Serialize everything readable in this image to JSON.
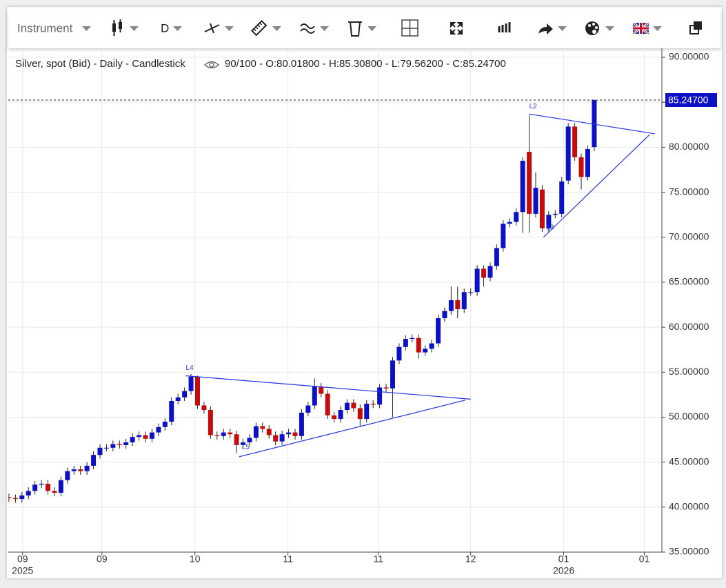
{
  "toolbar": {
    "instrument": "Instrument",
    "interval": "D"
  },
  "chart_data": {
    "type": "candlestick",
    "title": "Silver, spot (Bid) - Daily - Candlestick",
    "info": "90/100 - O:80.01800 - H:85.30800 - L:79.56200 - C:85.24700",
    "up_color": "#0c12c4",
    "down_color": "#c40c0c",
    "grid": true,
    "open": [
      41.1,
      41.0,
      40.9,
      41.3,
      41.8,
      42.5,
      42.6,
      41.8,
      41.6,
      43.0,
      44.0,
      44.2,
      44.0,
      44.6,
      45.8,
      46.6,
      46.6,
      47.0,
      46.9,
      47.2,
      47.8,
      48.0,
      47.6,
      48.3,
      48.9,
      49.5,
      51.8,
      52.2,
      52.9,
      54.5,
      51.3,
      50.8,
      48.0,
      47.9,
      48.3,
      48.1,
      46.9,
      47.2,
      47.7,
      49.0,
      48.7,
      48.0,
      47.3,
      48.1,
      48.3,
      47.9,
      50.5,
      51.3,
      53.4,
      52.6,
      50.2,
      49.8,
      50.8,
      51.6,
      51.0,
      49.8,
      51.5,
      51.4,
      53.3,
      53.2,
      56.3,
      57.8,
      58.7,
      58.8,
      57.2,
      57.6,
      58.2,
      61.0,
      61.8,
      63.0,
      62.0,
      63.9,
      63.9,
      66.5,
      65.5,
      66.8,
      68.8,
      71.5,
      71.7,
      72.8,
      79.5,
      72.6,
      75.3,
      71.0,
      72.5,
      72.6,
      76.3,
      82.3,
      78.9,
      76.7,
      80.018
    ],
    "high": [
      41.5,
      41.4,
      41.7,
      42.2,
      42.9,
      43.0,
      43.0,
      42.2,
      43.4,
      44.4,
      44.6,
      44.6,
      45.0,
      46.2,
      47.0,
      47.0,
      47.4,
      47.4,
      47.6,
      48.2,
      48.4,
      48.4,
      48.7,
      49.3,
      49.9,
      52.2,
      52.6,
      53.3,
      54.8,
      54.6,
      51.7,
      51.2,
      48.4,
      48.7,
      48.7,
      48.5,
      47.6,
      48.1,
      49.4,
      49.4,
      49.1,
      48.4,
      48.5,
      48.7,
      48.7,
      50.9,
      51.7,
      54.3,
      53.8,
      53.0,
      50.6,
      51.2,
      52.0,
      52.0,
      51.4,
      51.9,
      51.9,
      53.7,
      53.7,
      56.7,
      58.2,
      59.1,
      59.2,
      59.2,
      58.0,
      58.6,
      61.4,
      62.2,
      64.5,
      64.5,
      64.3,
      64.3,
      66.9,
      66.9,
      67.2,
      69.2,
      71.9,
      72.1,
      73.2,
      78.9,
      83.6,
      77.2,
      75.8,
      72.9,
      73.0,
      76.7,
      82.7,
      82.7,
      79.3,
      80.2,
      85.308
    ],
    "low": [
      40.6,
      40.5,
      40.5,
      40.9,
      41.4,
      42.1,
      41.4,
      41.2,
      41.2,
      42.6,
      43.6,
      43.6,
      43.6,
      44.2,
      45.4,
      46.2,
      46.2,
      46.5,
      46.5,
      46.8,
      47.4,
      47.2,
      47.2,
      47.9,
      48.5,
      49.1,
      51.4,
      51.8,
      52.5,
      50.9,
      50.4,
      47.6,
      47.5,
      47.5,
      47.7,
      46.0,
      46.5,
      46.8,
      47.3,
      48.3,
      47.6,
      46.9,
      46.9,
      47.7,
      47.5,
      47.5,
      50.1,
      50.9,
      52.2,
      49.8,
      49.4,
      49.4,
      50.4,
      50.6,
      48.9,
      49.4,
      51.0,
      51.0,
      52.8,
      50.0,
      55.9,
      57.4,
      58.3,
      56.5,
      56.8,
      57.2,
      57.8,
      60.6,
      61.4,
      61.0,
      61.6,
      63.5,
      63.5,
      64.5,
      65.1,
      66.4,
      68.4,
      71.1,
      71.3,
      70.5,
      70.5,
      72.2,
      70.6,
      70.6,
      72.1,
      72.2,
      75.9,
      78.5,
      75.3,
      76.3,
      79.562
    ],
    "close": [
      41.0,
      40.9,
      41.3,
      41.8,
      42.5,
      42.6,
      41.8,
      41.6,
      43.0,
      44.0,
      44.2,
      44.0,
      44.6,
      45.8,
      46.6,
      46.6,
      47.0,
      46.9,
      47.2,
      47.8,
      48.0,
      47.6,
      48.3,
      48.9,
      49.5,
      51.8,
      52.2,
      52.9,
      54.5,
      51.3,
      50.8,
      48.0,
      47.9,
      48.3,
      48.1,
      46.9,
      47.2,
      47.7,
      49.0,
      48.7,
      48.0,
      47.3,
      48.1,
      48.3,
      47.9,
      50.5,
      51.3,
      53.4,
      52.6,
      50.2,
      49.8,
      50.8,
      51.6,
      51.0,
      49.8,
      51.5,
      51.4,
      53.3,
      53.2,
      56.3,
      57.8,
      58.7,
      58.8,
      57.2,
      57.6,
      58.2,
      61.0,
      61.8,
      63.0,
      62.0,
      63.9,
      63.9,
      66.5,
      65.5,
      66.8,
      68.8,
      71.5,
      71.7,
      72.8,
      78.5,
      72.6,
      75.5,
      71.0,
      72.5,
      72.6,
      76.2,
      82.3,
      78.9,
      76.7,
      79.8,
      85.247
    ],
    "xlim": [
      -0.1,
      100.4
    ],
    "ylim": [
      35,
      91
    ],
    "xticks": [
      {
        "value": 2.1,
        "label": "09",
        "year": "2025"
      },
      {
        "value": 14.3,
        "label": "09"
      },
      {
        "value": 28.6,
        "label": "10"
      },
      {
        "value": 42.9,
        "label": "11"
      },
      {
        "value": 56.8,
        "label": "11"
      },
      {
        "value": 71.0,
        "label": "12"
      },
      {
        "value": 85.3,
        "label": "01",
        "year": "2026"
      },
      {
        "value": 97.7,
        "label": "01"
      }
    ],
    "yticks": [
      {
        "value": 35,
        "label": "35.00000"
      },
      {
        "value": 40,
        "label": "40.00000"
      },
      {
        "value": 45,
        "label": "45.00000"
      },
      {
        "value": 50,
        "label": "50.00000"
      },
      {
        "value": 55,
        "label": "55.00000"
      },
      {
        "value": 60,
        "label": "60.00000"
      },
      {
        "value": 65,
        "label": "65.00000"
      },
      {
        "value": 70,
        "label": "70.00000"
      },
      {
        "value": 75,
        "label": "75.00000"
      },
      {
        "value": 80,
        "label": "80.00000"
      },
      {
        "value": 85,
        "label": "85.00000"
      },
      {
        "value": 90,
        "label": "90.00000"
      }
    ],
    "last_price": {
      "value": 85.247,
      "label": "85.24700"
    },
    "drawings": [
      {
        "label": "L4",
        "start": [
          27.2,
          54.6
        ],
        "end": [
          71.0,
          52.0
        ]
      },
      {
        "label": "L5",
        "start": [
          35.4,
          45.6
        ],
        "end": [
          70.2,
          51.9
        ]
      },
      {
        "label": "L2",
        "start": [
          80.0,
          83.7
        ],
        "end": [
          99.3,
          81.5
        ]
      },
      {
        "label": "L3",
        "start": [
          82.2,
          70.0
        ],
        "end": [
          98.5,
          81.4
        ]
      }
    ],
    "drawing_color": "#2233dd"
  }
}
